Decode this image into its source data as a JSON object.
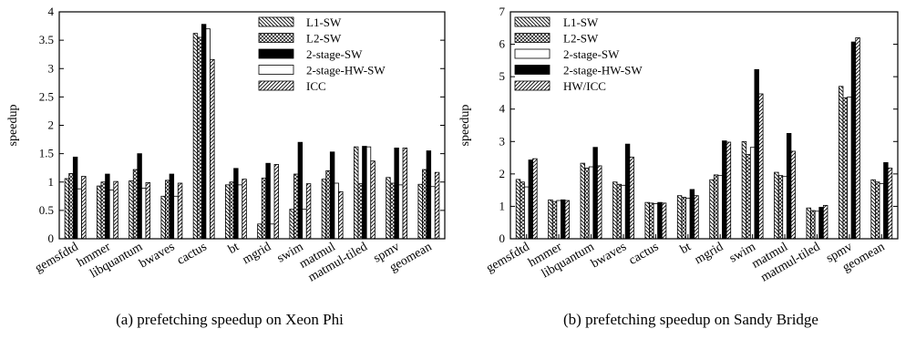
{
  "chart_data": [
    {
      "type": "bar",
      "title": "(a) prefetching speedup on Xeon Phi",
      "ylabel": "speedup",
      "ylim": [
        0,
        4
      ],
      "yticks": [
        "0",
        "0.5",
        "1",
        "1.5",
        "2",
        "2.5",
        "3",
        "3.5",
        "4"
      ],
      "legend_position": "top-right",
      "categories": [
        "gemsfdtd",
        "hmmer",
        "libquantum",
        "bwaves",
        "cactus",
        "bt",
        "mgrid",
        "swim",
        "matmul",
        "matmul-tiled",
        "spmv",
        "geomean"
      ],
      "series": [
        {
          "name": "L1-SW",
          "pattern": "diag-back",
          "values": [
            1.06,
            0.93,
            1.02,
            0.75,
            3.62,
            0.95,
            0.26,
            0.52,
            1.05,
            1.62,
            1.08,
            0.96
          ]
        },
        {
          "name": "L2-SW",
          "pattern": "cross",
          "values": [
            1.15,
            1.0,
            1.22,
            1.03,
            3.55,
            1.0,
            1.07,
            1.14,
            1.2,
            0.97,
            0.98,
            1.22
          ]
        },
        {
          "name": "2-stage-SW",
          "pattern": "solid",
          "values": [
            1.44,
            1.14,
            1.5,
            1.14,
            3.78,
            1.24,
            1.33,
            1.7,
            1.53,
            1.63,
            1.6,
            1.55
          ]
        },
        {
          "name": "2-stage-HW-SW",
          "pattern": "empty",
          "values": [
            0.88,
            0.86,
            0.89,
            0.75,
            3.7,
            0.95,
            0.26,
            0.52,
            0.98,
            1.62,
            0.95,
            0.92
          ]
        },
        {
          "name": "ICC",
          "pattern": "diag-fwd",
          "values": [
            1.1,
            1.01,
            0.99,
            0.98,
            3.16,
            1.05,
            1.31,
            0.97,
            0.83,
            1.37,
            1.6,
            1.17
          ]
        }
      ]
    },
    {
      "type": "bar",
      "title": "(b) prefetching speedup on Sandy Bridge",
      "ylabel": "speedup",
      "ylim": [
        0,
        7
      ],
      "yticks": [
        "0",
        "1",
        "2",
        "3",
        "4",
        "5",
        "6",
        "7"
      ],
      "legend_position": "top-left",
      "categories": [
        "gemsfdtd",
        "hmmer",
        "libquantum",
        "bwaves",
        "cactus",
        "bt",
        "mgrid",
        "swim",
        "matmul",
        "matmul-tiled",
        "spmv",
        "geomean"
      ],
      "series": [
        {
          "name": "L1-SW",
          "pattern": "diag-back",
          "values": [
            1.83,
            1.2,
            2.33,
            1.75,
            1.12,
            1.33,
            1.82,
            3.0,
            2.05,
            0.95,
            4.7,
            1.82
          ]
        },
        {
          "name": "L2-SW",
          "pattern": "cross",
          "values": [
            1.75,
            1.15,
            2.18,
            1.68,
            1.1,
            1.28,
            1.97,
            2.6,
            1.95,
            0.87,
            4.35,
            1.75
          ]
        },
        {
          "name": "2-stage-SW",
          "pattern": "empty",
          "values": [
            1.6,
            1.18,
            2.22,
            1.65,
            1.08,
            1.25,
            1.95,
            2.82,
            1.92,
            0.85,
            4.37,
            1.7
          ]
        },
        {
          "name": "2-stage-HW-SW",
          "pattern": "solid",
          "values": [
            2.43,
            1.2,
            2.82,
            2.92,
            1.12,
            1.52,
            3.02,
            5.22,
            3.25,
            0.97,
            6.07,
            2.35
          ]
        },
        {
          "name": "HW/ICC",
          "pattern": "diag-fwd",
          "values": [
            2.47,
            1.18,
            2.25,
            2.52,
            1.1,
            1.33,
            2.98,
            4.47,
            2.7,
            1.03,
            6.2,
            2.18
          ]
        }
      ]
    }
  ]
}
